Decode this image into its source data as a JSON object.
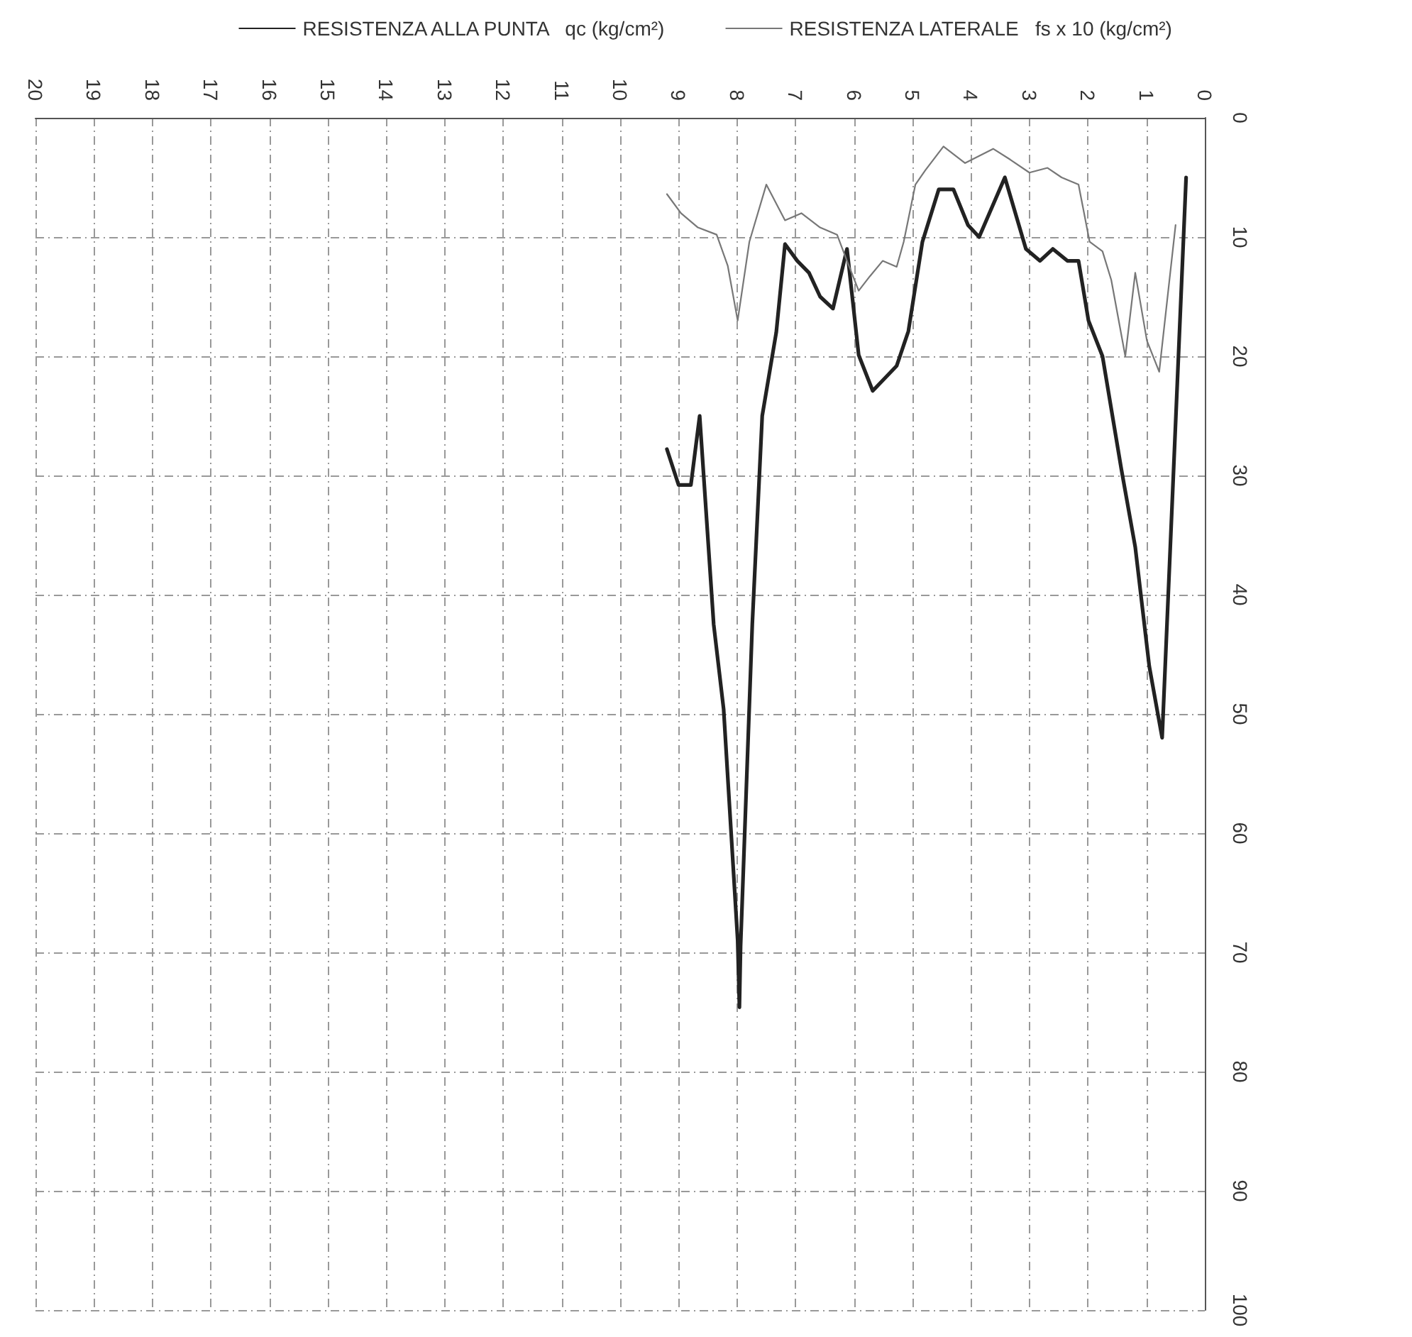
{
  "chart_data": {
    "type": "line",
    "xlim": [
      20,
      0
    ],
    "xticks": [
      0,
      1,
      2,
      3,
      4,
      5,
      6,
      7,
      8,
      9,
      10,
      11,
      12,
      13,
      14,
      15,
      16,
      17,
      18,
      19,
      20
    ],
    "ylim": [
      100,
      0
    ],
    "yticks": [
      0,
      10,
      20,
      30,
      40,
      50,
      60,
      70,
      80,
      90,
      100
    ],
    "grid": true,
    "legend": "top",
    "marker": "none",
    "line_style": "solid",
    "series": [
      {
        "name": "RESISTENZA ALLA PUNTA   qc (kg/cm²)",
        "color": "#222222",
        "x": [
          0.32,
          0.73,
          0.95,
          1.19,
          1.43,
          1.75,
          1.99,
          2.16,
          2.35,
          2.6,
          2.82,
          3.06,
          3.42,
          3.86,
          4.05,
          4.3,
          4.55,
          4.83,
          5.07,
          5.27,
          5.68,
          5.92,
          6.12,
          6.36,
          6.58,
          6.77,
          6.97,
          7.18,
          7.33,
          7.57,
          7.74,
          7.94,
          7.96,
          7.99,
          8.23,
          8.4,
          8.64,
          8.79,
          9.0,
          9.2
        ],
        "values": [
          5,
          52,
          46,
          36,
          29.4,
          20,
          17,
          12,
          12,
          11,
          12,
          11,
          5,
          10,
          9,
          6,
          6,
          10.4,
          17.9,
          20.8,
          22.9,
          19.9,
          11,
          16,
          15,
          13,
          12,
          10.6,
          18,
          25,
          42.5,
          69.5,
          74.6,
          69,
          49.6,
          42.5,
          25,
          30.8,
          30.8,
          27.8
        ]
      },
      {
        "name": "RESISTENZA LATERALE   fs x 10 (kg/cm²)",
        "color": "#777777",
        "x": [
          0.5,
          0.78,
          0.99,
          1.19,
          1.36,
          1.6,
          1.75,
          1.97,
          2.16,
          2.45,
          2.69,
          3.0,
          3.33,
          3.62,
          3.86,
          4.1,
          4.47,
          4.78,
          4.95,
          5.15,
          5.27,
          5.51,
          5.73,
          5.92,
          6.12,
          6.29,
          6.58,
          6.9,
          7.18,
          7.5,
          7.79,
          7.99,
          8.16,
          8.35,
          8.67,
          8.96,
          9.2
        ],
        "values": [
          9,
          21.3,
          18.7,
          13,
          20,
          13.6,
          11.2,
          10.4,
          5.6,
          5,
          4.2,
          4.6,
          3.5,
          2.6,
          3.2,
          3.8,
          2.4,
          4.4,
          5.6,
          10.4,
          12.5,
          12,
          13.3,
          14.5,
          12,
          9.8,
          9.2,
          8,
          8.6,
          5.6,
          10.4,
          17,
          12.4,
          9.8,
          9.2,
          8,
          6.4
        ]
      }
    ]
  }
}
